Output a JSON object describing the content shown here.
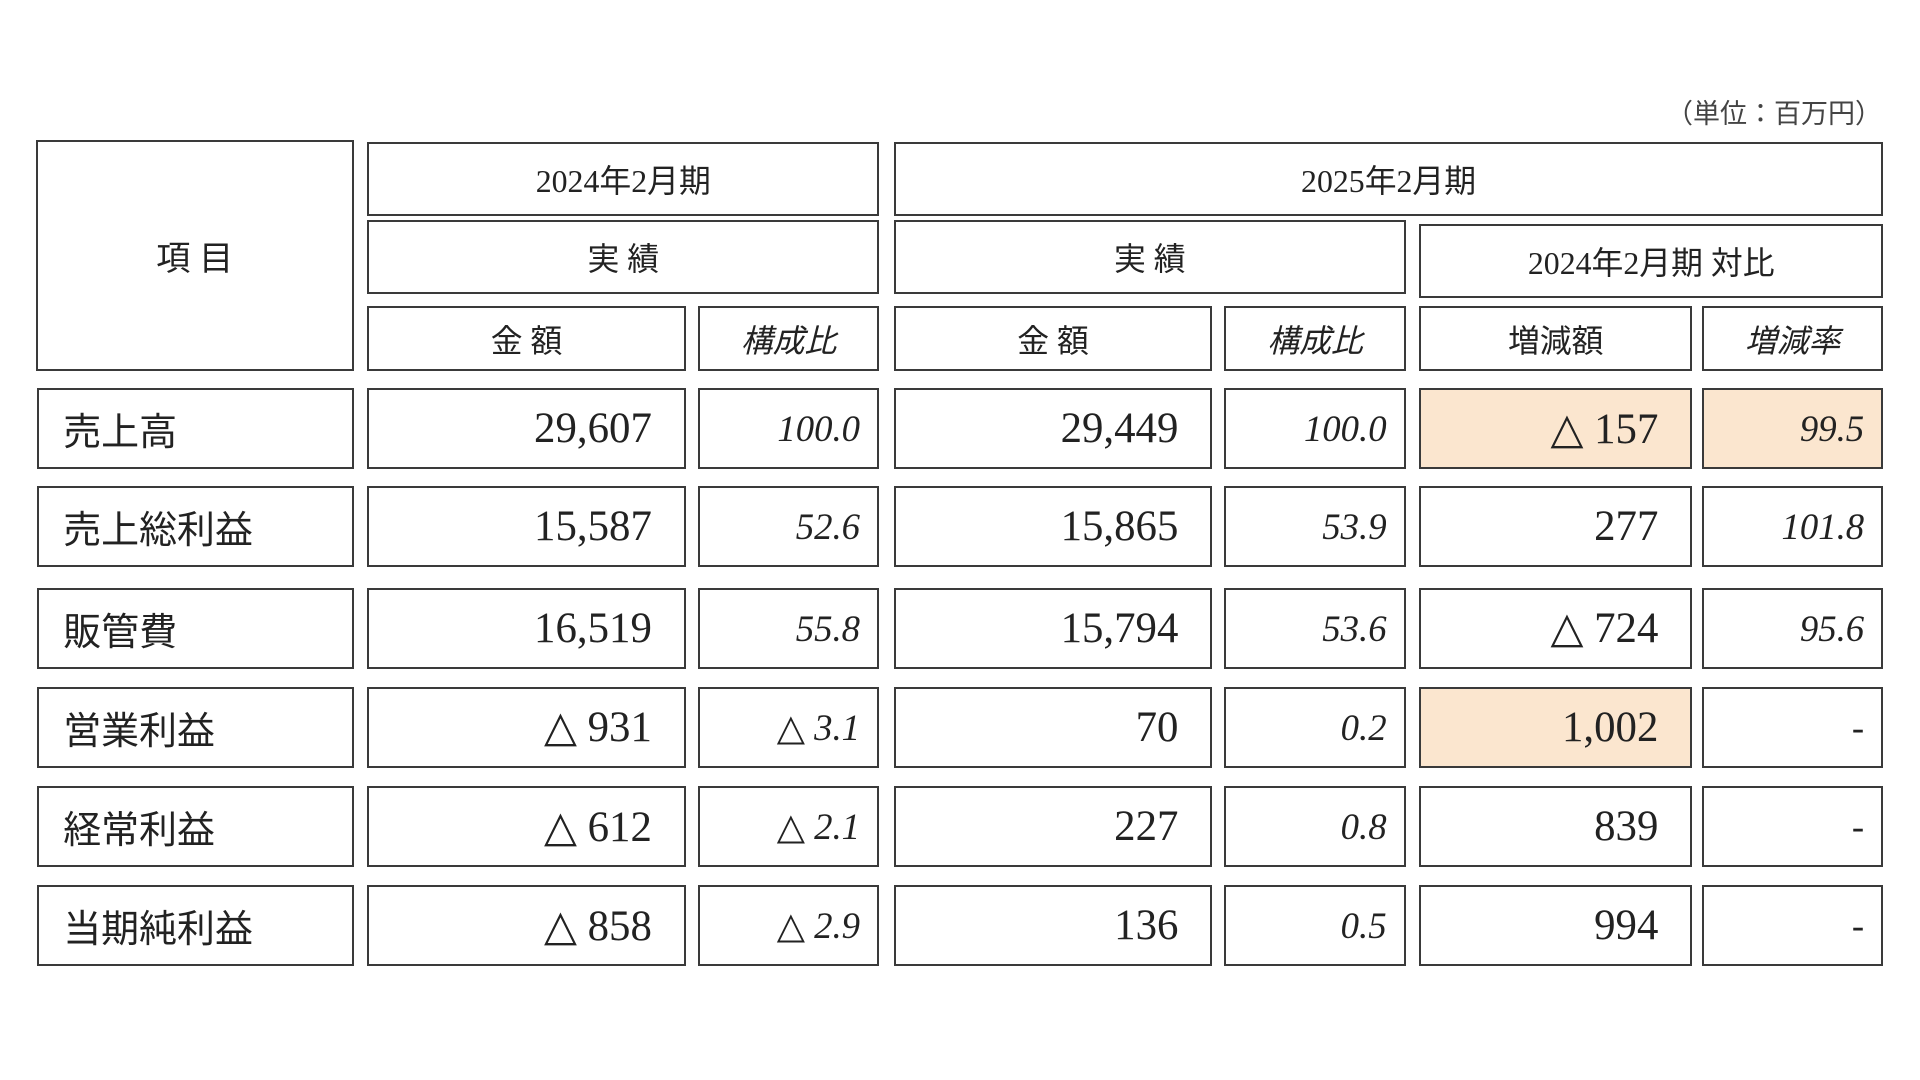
{
  "unit_note": "（単位：百万円）",
  "table": {
    "header": {
      "item": "項 目",
      "period_2024": "2024年2月期",
      "period_2025": "2025年2月期",
      "actual_2024": "実 績",
      "actual_2025": "実 績",
      "comparison": "2024年2月期 対比",
      "columns": [
        "金 額",
        "構成比",
        "金 額",
        "構成比",
        "増減額",
        "増減率"
      ]
    },
    "rows": [
      [
        "売上高",
        "29,607",
        "100.0",
        "29,449",
        "100.0",
        "△ 157",
        "99.5"
      ],
      [
        "売上総利益",
        "15,587",
        "52.6",
        "15,865",
        "53.9",
        "277",
        "101.8"
      ],
      [
        "販管費",
        "16,519",
        "55.8",
        "15,794",
        "53.6",
        "△ 724",
        "95.6"
      ],
      [
        "営業利益",
        "△ 931",
        "△ 3.1",
        "70",
        "0.2",
        "1,002",
        "-"
      ],
      [
        "経常利益",
        "△ 612",
        "△ 2.1",
        "227",
        "0.8",
        "839",
        "-"
      ],
      [
        "当期純利益",
        "△ 858",
        "△ 2.9",
        "136",
        "0.5",
        "994",
        "-"
      ]
    ]
  }
}
